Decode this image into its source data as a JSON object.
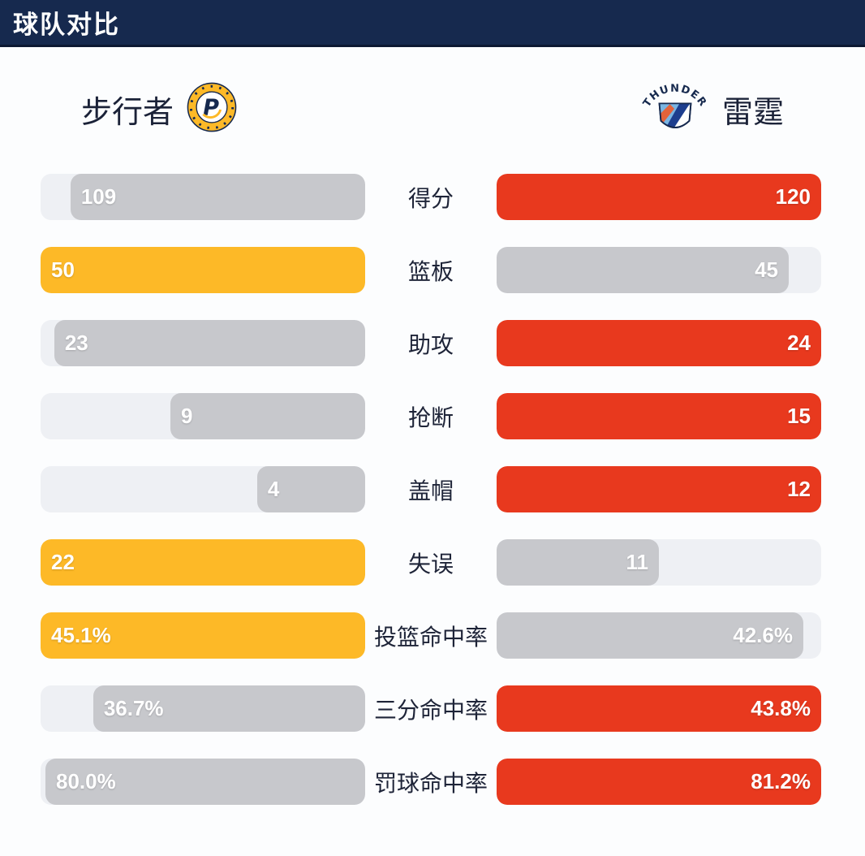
{
  "header": {
    "title": "球队对比"
  },
  "teams": {
    "left": {
      "name": "步行者",
      "logo": "pacers-logo",
      "highlight_color": "#fdb927"
    },
    "right": {
      "name": "雷霆",
      "logo": "thunder-logo",
      "highlight_color": "#e8391e"
    }
  },
  "colors": {
    "header_bg": "#16294e",
    "page_bg": "#fcfdfe",
    "bar_track": "#eef0f4",
    "bar_neutral": "#c7c8cc",
    "left_highlight": "#fdb927",
    "right_highlight": "#e8391e",
    "label_text": "#1e2438",
    "bar_value_text": "#ffffff"
  },
  "chart_data": {
    "type": "bar",
    "variant": "mirrored-team-comparison",
    "title": "球队对比",
    "categories": [
      "得分",
      "篮板",
      "助攻",
      "抢断",
      "盖帽",
      "失误",
      "投篮命中率",
      "三分命中率",
      "罚球命中率"
    ],
    "series": [
      {
        "name": "步行者",
        "values": [
          109,
          50,
          23,
          9,
          4,
          22,
          45.1,
          36.7,
          80.0
        ],
        "display": [
          "109",
          "50",
          "23",
          "9",
          "4",
          "22",
          "45.1%",
          "36.7%",
          "80.0%"
        ]
      },
      {
        "name": "雷霆",
        "values": [
          120,
          45,
          24,
          15,
          12,
          11,
          42.6,
          43.8,
          81.2
        ],
        "display": [
          "120",
          "45",
          "24",
          "15",
          "12",
          "11",
          "42.6%",
          "43.8%",
          "81.2%"
        ]
      }
    ],
    "scaling": "each row scaled to max of the two values",
    "legend_position": "top",
    "grid": false
  },
  "rows": [
    {
      "label": "得分",
      "left": {
        "display": "109",
        "fill_pct": 90.8,
        "highlight": false
      },
      "right": {
        "display": "120",
        "fill_pct": 100,
        "highlight": true
      }
    },
    {
      "label": "篮板",
      "left": {
        "display": "50",
        "fill_pct": 100,
        "highlight": true
      },
      "right": {
        "display": "45",
        "fill_pct": 90,
        "highlight": false
      }
    },
    {
      "label": "助攻",
      "left": {
        "display": "23",
        "fill_pct": 95.8,
        "highlight": false
      },
      "right": {
        "display": "24",
        "fill_pct": 100,
        "highlight": true
      }
    },
    {
      "label": "抢断",
      "left": {
        "display": "9",
        "fill_pct": 60,
        "highlight": false
      },
      "right": {
        "display": "15",
        "fill_pct": 100,
        "highlight": true
      }
    },
    {
      "label": "盖帽",
      "left": {
        "display": "4",
        "fill_pct": 33.3,
        "highlight": false
      },
      "right": {
        "display": "12",
        "fill_pct": 100,
        "highlight": true
      }
    },
    {
      "label": "失误",
      "left": {
        "display": "22",
        "fill_pct": 100,
        "highlight": true
      },
      "right": {
        "display": "11",
        "fill_pct": 50,
        "highlight": false
      }
    },
    {
      "label": "投篮命中率",
      "left": {
        "display": "45.1%",
        "fill_pct": 100,
        "highlight": true
      },
      "right": {
        "display": "42.6%",
        "fill_pct": 94.5,
        "highlight": false
      }
    },
    {
      "label": "三分命中率",
      "left": {
        "display": "36.7%",
        "fill_pct": 83.8,
        "highlight": false
      },
      "right": {
        "display": "43.8%",
        "fill_pct": 100,
        "highlight": true
      }
    },
    {
      "label": "罚球命中率",
      "left": {
        "display": "80.0%",
        "fill_pct": 98.5,
        "highlight": false
      },
      "right": {
        "display": "81.2%",
        "fill_pct": 100,
        "highlight": true
      }
    }
  ]
}
